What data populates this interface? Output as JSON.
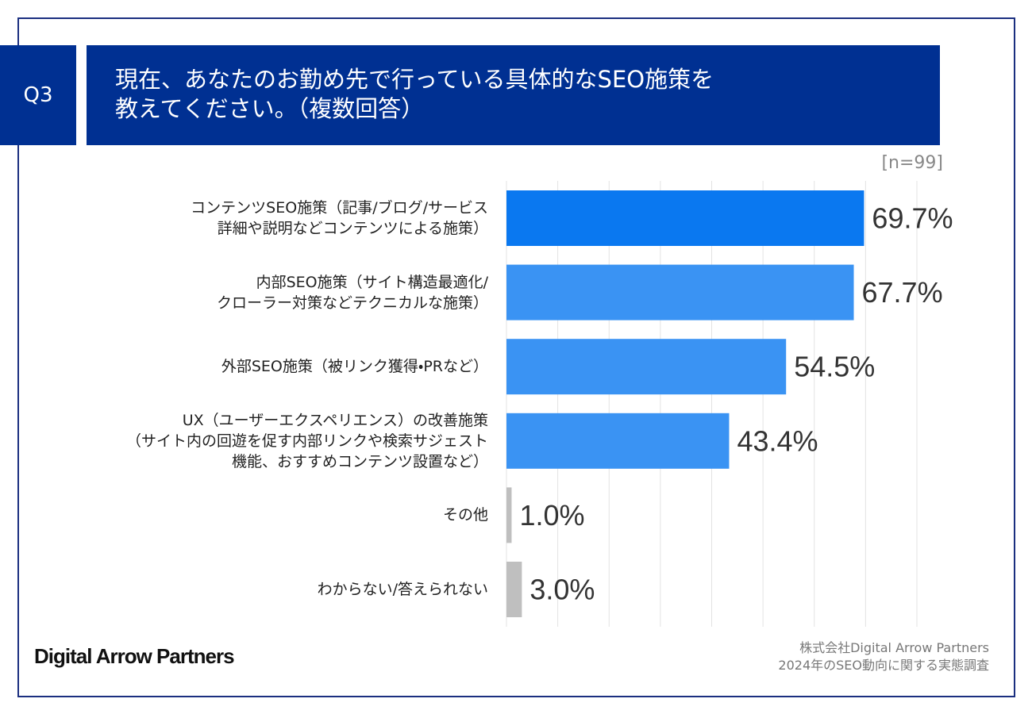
{
  "chart_data": {
    "type": "bar",
    "question": "Q3",
    "title_lines": [
      "現在、あなたのお勤め先で行っている具体的なSEO施策を",
      "教えてください。（複数回答）"
    ],
    "sample_note": "[n=99]",
    "categories": [
      "コンテンツSEO施策（記事/ブログ/サービス\n詳細や説明などコンテンツによる施策）",
      "内部SEO施策（サイト構造最適化/\nクローラー対策などテクニカルな施策）",
      "外部SEO施策（被リンク獲得・PRなど）",
      "UX（ユーザーエクスペリエンス）の改善施策\n（サイト内の回遊を促す内部リンクや検索サジェスト\n機能、おすすめコンテンツ設置など）",
      "その他",
      "わからない/答えられない"
    ],
    "values": [
      69.7,
      67.7,
      54.5,
      43.4,
      1.0,
      3.0
    ],
    "value_labels": [
      "69.7%",
      "67.7%",
      "54.5%",
      "43.4%",
      "1.0%",
      "3.0%"
    ],
    "colors": [
      "#0a78f0",
      "#3a93f3",
      "#3a93f3",
      "#3a93f3",
      "#bfbfbf",
      "#bfbfbf"
    ],
    "xlim": [
      0,
      80
    ],
    "xticks": [
      0,
      10,
      20,
      30,
      40,
      50,
      60,
      70,
      80
    ],
    "grid": true,
    "logo": "Digital Arrow Partners",
    "source_lines": [
      "株式会社Digital Arrow Partners",
      "2024年のSEO動向に関する実態調査"
    ]
  }
}
